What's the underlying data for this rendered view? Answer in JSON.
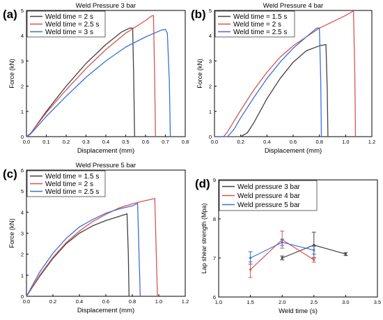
{
  "colors": {
    "gray": "#404040",
    "red": "#d9534f",
    "blue": "#3a6fd8"
  },
  "chart_data": [
    {
      "id": "a",
      "panel_label": "(a)",
      "type": "line",
      "title": "Weld Pressure 3 bar",
      "xlabel": "Displacement (mm)",
      "ylabel": "Force (kN)",
      "xlim": [
        0,
        0.8
      ],
      "ylim": [
        0,
        5
      ],
      "xticks": [
        "0.0",
        "0.1",
        "0.2",
        "0.3",
        "0.4",
        "0.5",
        "0.6",
        "0.7",
        "0.8"
      ],
      "yticks": [
        "0",
        "1",
        "2",
        "3",
        "4",
        "5"
      ],
      "legend": "top-left",
      "series": [
        {
          "name": "Weld time = 2 s",
          "color": "gray",
          "points": [
            [
              0.0,
              0.0
            ],
            [
              0.02,
              0.12
            ],
            [
              0.1,
              1.0
            ],
            [
              0.2,
              2.0
            ],
            [
              0.3,
              2.9
            ],
            [
              0.4,
              3.65
            ],
            [
              0.48,
              4.15
            ],
            [
              0.52,
              4.3
            ],
            [
              0.535,
              4.3
            ],
            [
              0.54,
              2.5
            ],
            [
              0.545,
              0.0
            ]
          ]
        },
        {
          "name": "Weld time = 2.5 s",
          "color": "red",
          "points": [
            [
              0.0,
              0.0
            ],
            [
              0.02,
              0.12
            ],
            [
              0.1,
              0.95
            ],
            [
              0.2,
              1.85
            ],
            [
              0.3,
              2.7
            ],
            [
              0.4,
              3.45
            ],
            [
              0.5,
              4.1
            ],
            [
              0.6,
              4.6
            ],
            [
              0.63,
              4.78
            ],
            [
              0.64,
              4.8
            ],
            [
              0.645,
              2.8
            ],
            [
              0.65,
              0.0
            ]
          ]
        },
        {
          "name": "Weld time = 3 s",
          "color": "blue",
          "points": [
            [
              0.0,
              0.0
            ],
            [
              0.02,
              0.1
            ],
            [
              0.1,
              0.8
            ],
            [
              0.2,
              1.6
            ],
            [
              0.3,
              2.35
            ],
            [
              0.4,
              3.0
            ],
            [
              0.5,
              3.55
            ],
            [
              0.6,
              3.95
            ],
            [
              0.68,
              4.22
            ],
            [
              0.7,
              4.25
            ],
            [
              0.71,
              4.1
            ],
            [
              0.72,
              2.2
            ],
            [
              0.725,
              0.0
            ]
          ]
        }
      ]
    },
    {
      "id": "b",
      "panel_label": "(b)",
      "type": "line",
      "title": "Weld Pressure 4 bar",
      "xlabel": "Displacement (mm)",
      "ylabel": "Force (kN)",
      "xlim": [
        0,
        1.2
      ],
      "ylim": [
        0,
        5
      ],
      "xticks": [
        "0.0",
        "0.2",
        "0.4",
        "0.6",
        "0.8",
        "1.0",
        "1.2"
      ],
      "yticks": [
        "0",
        "1",
        "2",
        "3",
        "4",
        "5"
      ],
      "legend": "top-left",
      "series": [
        {
          "name": "Weld time = 1.5 s",
          "color": "gray",
          "points": [
            [
              0.0,
              0.0
            ],
            [
              0.2,
              0.0
            ],
            [
              0.25,
              0.15
            ],
            [
              0.3,
              0.55
            ],
            [
              0.4,
              1.5
            ],
            [
              0.5,
              2.3
            ],
            [
              0.6,
              2.95
            ],
            [
              0.7,
              3.4
            ],
            [
              0.8,
              3.6
            ],
            [
              0.85,
              3.65
            ],
            [
              0.86,
              1.8
            ],
            [
              0.865,
              0.0
            ]
          ]
        },
        {
          "name": "Weld time = 2 s",
          "color": "red",
          "points": [
            [
              0.0,
              0.0
            ],
            [
              0.07,
              0.0
            ],
            [
              0.1,
              0.2
            ],
            [
              0.2,
              1.05
            ],
            [
              0.3,
              1.85
            ],
            [
              0.4,
              2.55
            ],
            [
              0.5,
              3.15
            ],
            [
              0.6,
              3.6
            ],
            [
              0.7,
              3.95
            ],
            [
              0.8,
              4.3
            ],
            [
              0.9,
              4.55
            ],
            [
              1.0,
              4.8
            ],
            [
              1.06,
              4.98
            ],
            [
              1.07,
              2.5
            ],
            [
              1.075,
              0.0
            ]
          ]
        },
        {
          "name": "Weld time = 2.5 s",
          "color": "blue",
          "points": [
            [
              0.0,
              0.0
            ],
            [
              0.1,
              0.0
            ],
            [
              0.15,
              0.3
            ],
            [
              0.2,
              0.75
            ],
            [
              0.3,
              1.55
            ],
            [
              0.4,
              2.3
            ],
            [
              0.5,
              2.95
            ],
            [
              0.6,
              3.5
            ],
            [
              0.7,
              3.95
            ],
            [
              0.78,
              4.3
            ],
            [
              0.8,
              4.3
            ],
            [
              0.81,
              2.2
            ],
            [
              0.815,
              0.0
            ]
          ]
        }
      ]
    },
    {
      "id": "c",
      "panel_label": "(c)",
      "type": "line",
      "title": "Weld Pressure 5 bar",
      "xlabel": "Displacement (mm)",
      "ylabel": "Force (kN)",
      "xlim": [
        0,
        1.2
      ],
      "ylim": [
        0,
        6
      ],
      "xticks": [
        "0.0",
        "0.2",
        "0.4",
        "0.6",
        "0.8",
        "1.0",
        "1.2"
      ],
      "yticks": [
        "0",
        "1",
        "2",
        "3",
        "4",
        "5",
        "6"
      ],
      "legend": "top-left",
      "series": [
        {
          "name": "Weld time = 1.5 s",
          "color": "gray",
          "points": [
            [
              0.0,
              0.0
            ],
            [
              0.1,
              0.95
            ],
            [
              0.2,
              1.8
            ],
            [
              0.3,
              2.5
            ],
            [
              0.4,
              3.0
            ],
            [
              0.5,
              3.35
            ],
            [
              0.6,
              3.6
            ],
            [
              0.7,
              3.8
            ],
            [
              0.76,
              3.92
            ],
            [
              0.77,
              2.0
            ],
            [
              0.775,
              0.0
            ]
          ]
        },
        {
          "name": "Weld time = 2 s",
          "color": "red",
          "points": [
            [
              0.0,
              0.0
            ],
            [
              0.1,
              1.0
            ],
            [
              0.2,
              1.85
            ],
            [
              0.3,
              2.55
            ],
            [
              0.4,
              3.1
            ],
            [
              0.5,
              3.55
            ],
            [
              0.6,
              3.9
            ],
            [
              0.7,
              4.2
            ],
            [
              0.8,
              4.4
            ],
            [
              0.9,
              4.55
            ],
            [
              0.97,
              4.65
            ],
            [
              0.98,
              2.3
            ],
            [
              0.99,
              0.0
            ]
          ]
        },
        {
          "name": "Weld time = 2.5 s",
          "color": "blue",
          "points": [
            [
              0.0,
              0.0
            ],
            [
              0.1,
              1.15
            ],
            [
              0.2,
              2.05
            ],
            [
              0.3,
              2.75
            ],
            [
              0.4,
              3.3
            ],
            [
              0.5,
              3.65
            ],
            [
              0.6,
              3.95
            ],
            [
              0.7,
              4.15
            ],
            [
              0.8,
              4.3
            ],
            [
              0.84,
              4.42
            ],
            [
              0.85,
              2.2
            ],
            [
              0.86,
              0.0
            ]
          ]
        }
      ]
    },
    {
      "id": "d",
      "panel_label": "(d)",
      "type": "line",
      "title": "",
      "xlabel": "Weld time (s)",
      "ylabel": "Lap shear strength (Mpa)",
      "xlim": [
        1.0,
        3.5
      ],
      "ylim": [
        6,
        9
      ],
      "xticks": [
        "1.0",
        "1.5",
        "2.0",
        "2.5",
        "3.0",
        "3.5"
      ],
      "yticks": [
        "6",
        "7",
        "8",
        "9"
      ],
      "legend": "top-left",
      "series": [
        {
          "name": "Weld pressure 3 bar",
          "color": "gray",
          "x": [
            2.0,
            2.5,
            3.0
          ],
          "values": [
            7.0,
            7.33,
            7.1
          ],
          "errors": [
            0.05,
            0.33,
            0.04
          ]
        },
        {
          "name": "Weld pressure 4 bar",
          "color": "red",
          "x": [
            1.5,
            2.0,
            2.5
          ],
          "values": [
            6.7,
            7.47,
            6.95
          ],
          "errors": [
            0.2,
            0.22,
            0.06
          ]
        },
        {
          "name": "Weld pressure 5 bar",
          "color": "blue",
          "x": [
            1.5,
            2.0,
            2.5
          ],
          "values": [
            7.0,
            7.4,
            7.2
          ],
          "errors": [
            0.16,
            0.08,
            0.1
          ]
        }
      ]
    }
  ]
}
